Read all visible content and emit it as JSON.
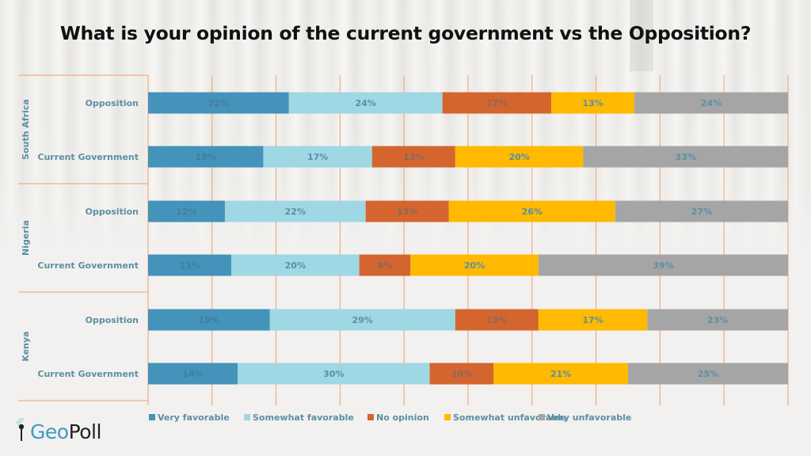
{
  "title": "What is your opinion of the current government vs the Opposition?",
  "logo": {
    "part1": "Geo",
    "part2": "Poll",
    "icon": "signal-pin-icon"
  },
  "chart_data": {
    "type": "bar",
    "orientation": "horizontal",
    "stacked": "percent",
    "title": "What is your opinion of the current government vs the Opposition?",
    "xlim": [
      0,
      100
    ],
    "grid": true,
    "legend_position": "bottom",
    "groups": [
      {
        "name": "South Africa",
        "categories": [
          "Opposition",
          "Current Government"
        ]
      },
      {
        "name": "Nigeria",
        "categories": [
          "Opposition",
          "Current Government"
        ]
      },
      {
        "name": "Kenya",
        "categories": [
          "Opposition",
          "Current Government"
        ]
      }
    ],
    "categories": [
      "South Africa - Opposition",
      "South Africa - Current Government",
      "Nigeria - Opposition",
      "Nigeria - Current Government",
      "Kenya - Opposition",
      "Kenya - Current Government"
    ],
    "series": [
      {
        "name": "Very favorable",
        "color": "#4393bb",
        "values": [
          22,
          18,
          12,
          13,
          19,
          14
        ]
      },
      {
        "name": "Somewhat favorable",
        "color": "#9fd7e4",
        "values": [
          24,
          17,
          22,
          20,
          29,
          30
        ]
      },
      {
        "name": "No opinion",
        "color": "#d4652f",
        "values": [
          17,
          13,
          13,
          8,
          13,
          10
        ]
      },
      {
        "name": "Somewhat unfavorable",
        "color": "#ffb900",
        "values": [
          13,
          20,
          26,
          20,
          17,
          21
        ]
      },
      {
        "name": "Very unfavorable",
        "color": "#a5a5a5",
        "values": [
          24,
          33,
          27,
          39,
          23,
          25
        ]
      }
    ],
    "label_color": "#5b8fa3",
    "axis_color": "#f0a06a"
  }
}
